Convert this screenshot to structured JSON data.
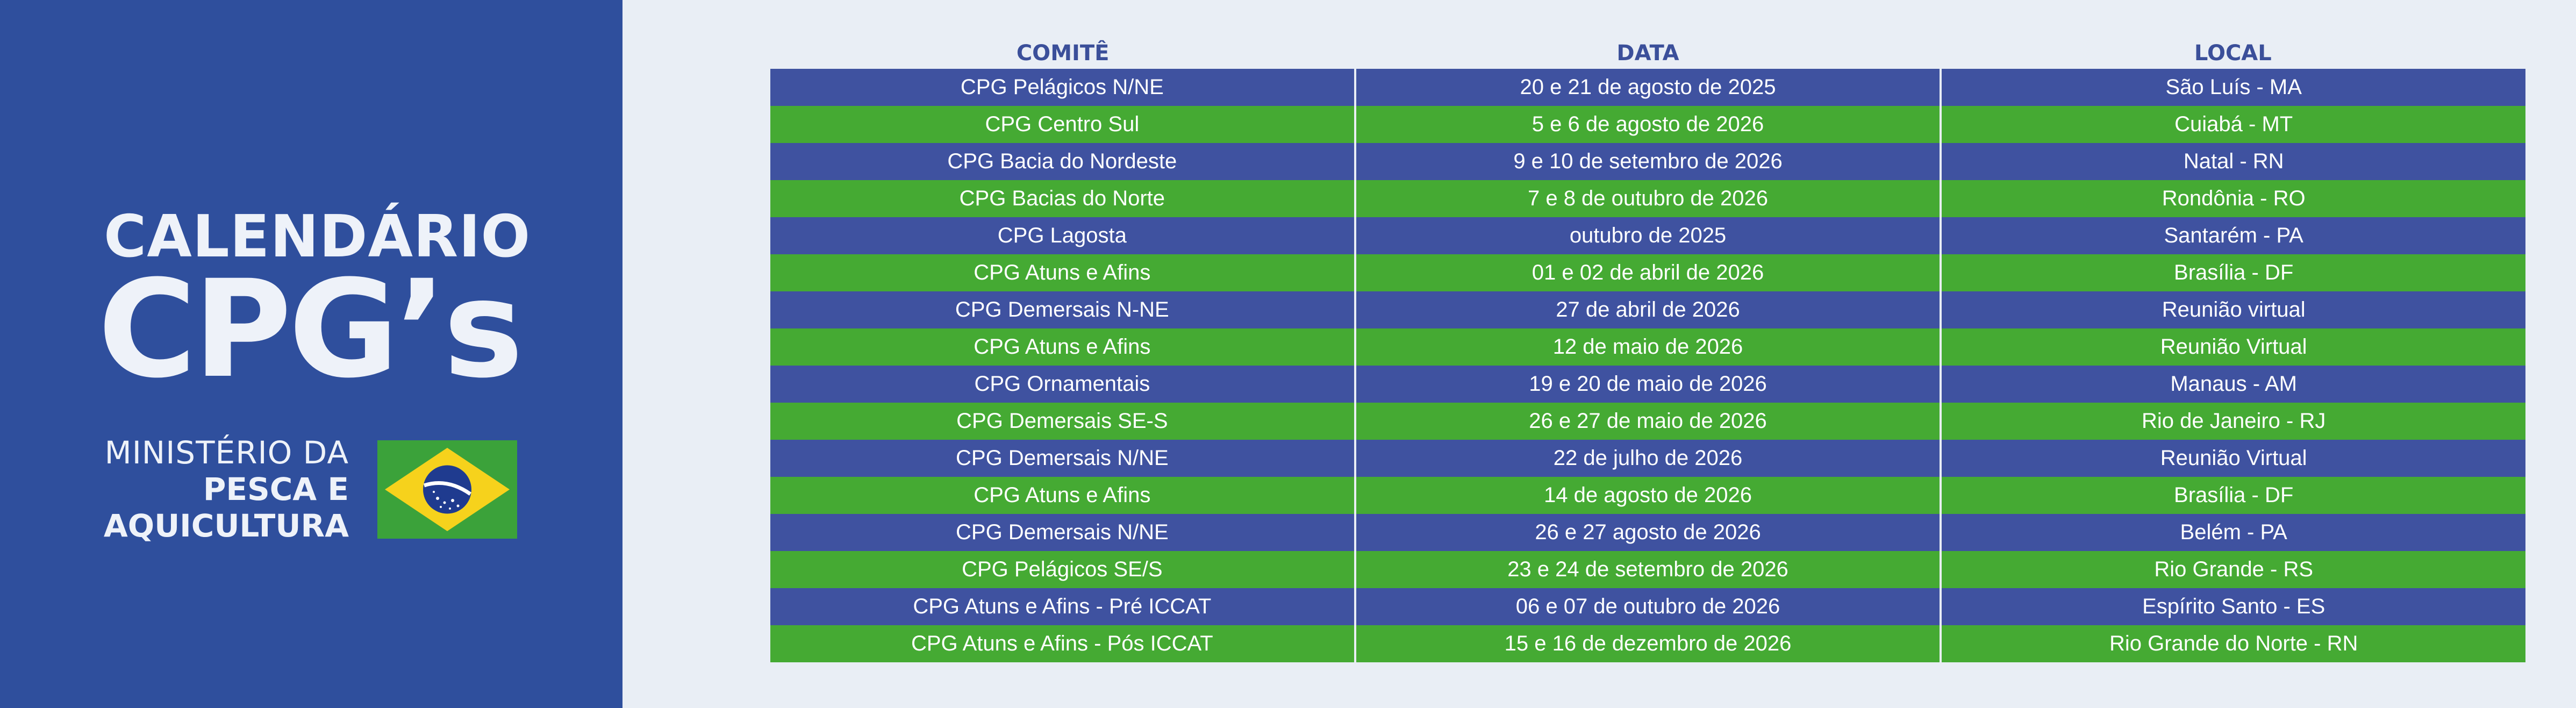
{
  "sidebar": {
    "title_top": "CALENDÁRIO",
    "title_main": "CPG’s",
    "ministry_line1": "MINISTÉRIO DA",
    "ministry_line2": "PESCA E",
    "ministry_line3": "AQUICULTURA",
    "flag_icon": "brazil-flag-icon",
    "colors": {
      "background": "#2f4f9d",
      "text": "#eef2f9"
    }
  },
  "table": {
    "headers": [
      "COMITÊ",
      "DATA",
      "LOCAL"
    ],
    "colors": {
      "blue_row": "#3f52a0",
      "green_row": "#45aa33",
      "header_text": "#3b4f9a"
    },
    "rows": [
      {
        "comite": "CPG Pelágicos N/NE",
        "data": "20 e 21 de agosto de 2025",
        "local": "São Luís - MA"
      },
      {
        "comite": "CPG Centro Sul",
        "data": "5 e 6 de agosto de 2026",
        "local": "Cuiabá - MT"
      },
      {
        "comite": "CPG Bacia do Nordeste",
        "data": "9 e 10 de setembro de 2026",
        "local": "Natal - RN"
      },
      {
        "comite": "CPG Bacias do Norte",
        "data": "7 e 8 de outubro de 2026",
        "local": "Rondônia - RO"
      },
      {
        "comite": "CPG Lagosta",
        "data": "outubro de 2025",
        "local": "Santarém - PA"
      },
      {
        "comite": "CPG Atuns e Afins",
        "data": "01 e 02 de abril de 2026",
        "local": "Brasília - DF"
      },
      {
        "comite": "CPG Demersais N-NE",
        "data": "27 de abril de 2026",
        "local": "Reunião virtual"
      },
      {
        "comite": "CPG Atuns e Afins",
        "data": "12 de maio de 2026",
        "local": "Reunião Virtual"
      },
      {
        "comite": "CPG Ornamentais",
        "data": "19 e 20 de maio de 2026",
        "local": "Manaus - AM"
      },
      {
        "comite": "CPG Demersais SE-S",
        "data": "26 e 27 de maio de 2026",
        "local": "Rio de Janeiro - RJ"
      },
      {
        "comite": "CPG Demersais N/NE",
        "data": "22 de julho de 2026",
        "local": "Reunião Virtual"
      },
      {
        "comite": "CPG Atuns e Afins",
        "data": "14 de agosto de 2026",
        "local": "Brasília - DF"
      },
      {
        "comite": "CPG Demersais N/NE",
        "data": "26 e 27 agosto de 2026",
        "local": "Belém - PA"
      },
      {
        "comite": "CPG Pelágicos SE/S",
        "data": "23 e 24 de setembro de 2026",
        "local": "Rio Grande - RS"
      },
      {
        "comite": "CPG Atuns e Afins - Pré ICCAT",
        "data": "06 e 07 de outubro de 2026",
        "local": "Espírito Santo - ES"
      },
      {
        "comite": "CPG Atuns e Afins - Pós ICCAT",
        "data": "15 e 16 de dezembro de 2026",
        "local": "Rio Grande do Norte - RN"
      }
    ]
  }
}
